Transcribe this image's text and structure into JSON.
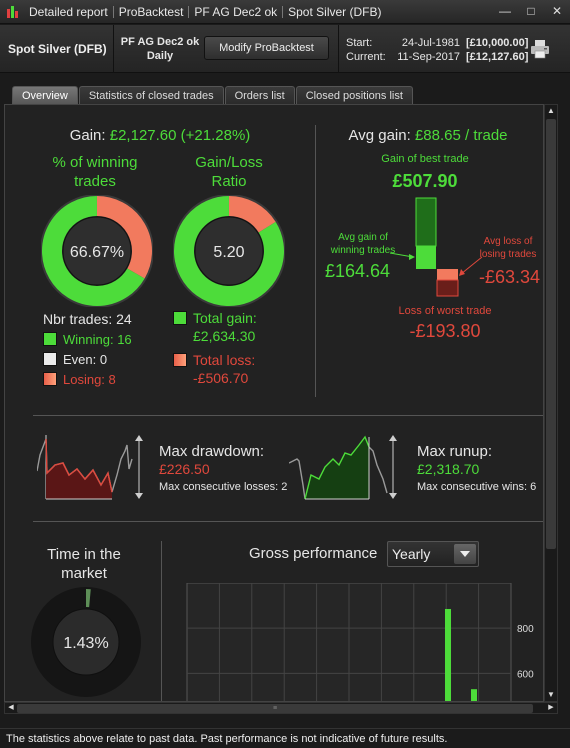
{
  "window": {
    "title_segments": [
      "Detailed report",
      "ProBacktest",
      "PF AG Dec2 ok",
      "Spot Silver (DFB)"
    ],
    "controls": [
      "—",
      "□",
      "✕"
    ]
  },
  "header": {
    "instrument": "Spot Silver (DFB)",
    "system_name": "PF AG Dec2 ok",
    "timeframe": "Daily",
    "modify_button": "Modify ProBacktest",
    "start_label": "Start:",
    "start_date": "24-Jul-1981",
    "start_value": "[£10,000.00]",
    "current_label": "Current:",
    "current_date": "11-Sep-2017",
    "current_value": "[£12,127.60]"
  },
  "tabs": [
    {
      "label": "Overview",
      "active": true
    },
    {
      "label": "Statistics of closed trades",
      "active": false
    },
    {
      "label": "Orders list",
      "active": false
    },
    {
      "label": "Closed positions list",
      "active": false
    }
  ],
  "gain": {
    "label": "Gain:",
    "value": "£2,127.60 (+21.28%)"
  },
  "winning": {
    "title_line1": "% of winning",
    "title_line2": "trades",
    "percent_label": "66.67%",
    "fraction": 0.6667
  },
  "gain_loss": {
    "title_line1": "Gain/Loss",
    "title_line2": "Ratio",
    "ratio_label": "5.20",
    "gain_fraction": 0.8387
  },
  "trades": {
    "nbr_label": "Nbr trades: 24",
    "winning_label": "Winning: 16",
    "even_label": "Even: 0",
    "losing_label": "Losing: 8"
  },
  "totals": {
    "gain_label": "Total gain:",
    "gain_value": "£2,634.30",
    "loss_label": "Total loss:",
    "loss_value": "-£506.70"
  },
  "avg_gain": {
    "label": "Avg gain:",
    "value": "£88.65 / trade",
    "best_label": "Gain of best trade",
    "best_value": "£507.90",
    "avg_win_label_1": "Avg gain of",
    "avg_win_label_2": "winning trades",
    "avg_win_value": "£164.64",
    "avg_loss_label_1": "Avg loss of",
    "avg_loss_label_2": "losing trades",
    "avg_loss_value": "-£63.34",
    "worst_label": "Loss of worst trade",
    "worst_value": "-£193.80"
  },
  "drawdown": {
    "label": "Max drawdown:",
    "value": "£226.50",
    "consec_label": "Max consecutive losses: 2"
  },
  "runup": {
    "label": "Max runup:",
    "value": "£2,318.70",
    "consec_label": "Max consecutive wins: 6"
  },
  "time_in_market": {
    "title_line1": "Time in the",
    "title_line2": "market",
    "percent_label": "1.43%",
    "fraction": 0.0143
  },
  "gross_performance": {
    "title": "Gross performance",
    "period": "Yearly"
  },
  "chart_data": {
    "type": "bar",
    "title": "Gross performance",
    "yticks": [
      600,
      800
    ],
    "ylim": [
      460,
      1000
    ],
    "series": [
      {
        "values": [
          885,
          530
        ]
      }
    ]
  },
  "footer": "The statistics above relate to past data. Past performance is not indicative of future results.",
  "colors": {
    "gain": "#4ddc3a",
    "loss": "#e0483c",
    "panel": "#222222"
  }
}
